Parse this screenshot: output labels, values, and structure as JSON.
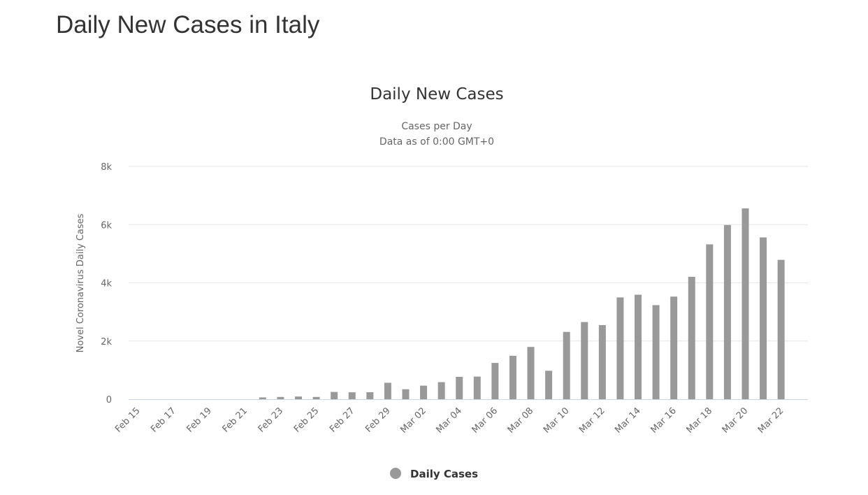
{
  "page": {
    "heading": "Daily New Cases in Italy"
  },
  "colors": {
    "bar": "#999999",
    "grid": "#e6e6e6",
    "axis": "#ccd6eb"
  },
  "chart_data": {
    "type": "bar",
    "title": "Daily New Cases",
    "subtitle_lines": [
      "Cases per Day",
      "Data as of 0:00 GMT+0"
    ],
    "ylabel": "Novel Coronavirus Daily Cases",
    "xlabel": "",
    "ylim": [
      0,
      8000
    ],
    "y_ticks": [
      0,
      2000,
      4000,
      6000,
      8000
    ],
    "y_tick_labels": [
      "0",
      "2k",
      "4k",
      "6k",
      "8k"
    ],
    "grid": true,
    "legend_position": "bottom-center",
    "categories": [
      "Feb 15",
      "Feb 16",
      "Feb 17",
      "Feb 18",
      "Feb 19",
      "Feb 20",
      "Feb 21",
      "Feb 22",
      "Feb 23",
      "Feb 24",
      "Feb 25",
      "Feb 26",
      "Feb 27",
      "Feb 28",
      "Feb 29",
      "Mar 01",
      "Mar 02",
      "Mar 03",
      "Mar 04",
      "Mar 05",
      "Mar 06",
      "Mar 07",
      "Mar 08",
      "Mar 09",
      "Mar 10",
      "Mar 11",
      "Mar 12",
      "Mar 13",
      "Mar 14",
      "Mar 15",
      "Mar 16",
      "Mar 17",
      "Mar 18",
      "Mar 19",
      "Mar 20",
      "Mar 21",
      "Mar 22",
      "Mar 23"
    ],
    "x_tick_labels": [
      "Feb 15",
      "Feb 17",
      "Feb 19",
      "Feb 21",
      "Feb 23",
      "Feb 25",
      "Feb 27",
      "Feb 29",
      "Mar 02",
      "Mar 04",
      "Mar 06",
      "Mar 08",
      "Mar 10",
      "Mar 12",
      "Mar 14",
      "Mar 16",
      "Mar 18",
      "Mar 20",
      "Mar 22"
    ],
    "series": [
      {
        "name": "Daily Cases",
        "values": [
          0,
          0,
          0,
          0,
          0,
          0,
          0,
          62,
          77,
          93,
          78,
          250,
          238,
          240,
          566,
          342,
          466,
          587,
          769,
          778,
          1247,
          1492,
          1797,
          977,
          2313,
          2651,
          2547,
          3497,
          3590,
          3233,
          3526,
          4207,
          5322,
          5986,
          6557,
          5560,
          4789,
          0
        ]
      }
    ]
  }
}
